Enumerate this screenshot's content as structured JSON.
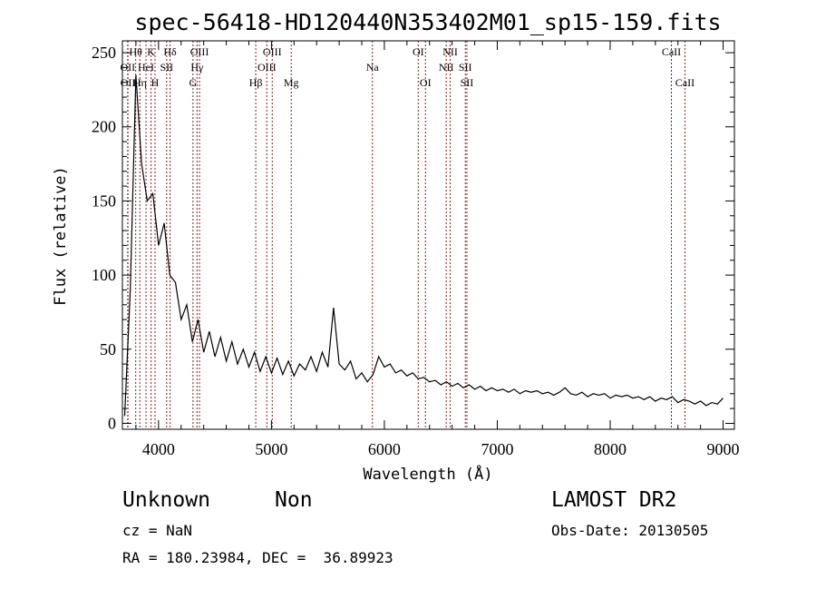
{
  "chart_data": {
    "type": "line",
    "title": "spec-56418-HD120440N353402M01_sp15-159.fits",
    "xlabel": "Wavelength (Å)",
    "ylabel": "Flux (relative)",
    "xlim": [
      3680,
      9100
    ],
    "ylim": [
      -4,
      258
    ],
    "xticks": [
      4000,
      5000,
      6000,
      7000,
      8000,
      9000
    ],
    "yticks": [
      0,
      50,
      100,
      150,
      200,
      250
    ],
    "grid": false,
    "series": [
      {
        "name": "spectrum",
        "x_start": 3700,
        "x_step": 50,
        "values": [
          5,
          90,
          235,
          175,
          150,
          155,
          120,
          135,
          100,
          95,
          70,
          80,
          55,
          70,
          48,
          62,
          45,
          58,
          42,
          55,
          40,
          50,
          38,
          48,
          35,
          45,
          34,
          44,
          33,
          42,
          32,
          40,
          36,
          45,
          35,
          48,
          38,
          78,
          40,
          36,
          42,
          30,
          34,
          28,
          33,
          45,
          38,
          40,
          34,
          36,
          32,
          34,
          30,
          31,
          28,
          29,
          26,
          28,
          25,
          27,
          24,
          26,
          23,
          25,
          22,
          24,
          22,
          23,
          21,
          23,
          20,
          22,
          21,
          22,
          20,
          21,
          19,
          21,
          24,
          20,
          19,
          21,
          18,
          20,
          19,
          20,
          17,
          19,
          18,
          19,
          17,
          18,
          16,
          18,
          15,
          17,
          16,
          18,
          14,
          16,
          15,
          13,
          15,
          12,
          14,
          13,
          17
        ]
      }
    ],
    "lines": [
      {
        "label": "OII",
        "wave": 3727,
        "row": 2
      },
      {
        "label": "OII",
        "wave": 3729,
        "row": 3
      },
      {
        "label": "Hθ",
        "wave": 3798,
        "row": 1
      },
      {
        "label": "Hη",
        "wave": 3835,
        "row": 3
      },
      {
        "label": "HeI",
        "wave": 3889,
        "row": 2
      },
      {
        "label": "K",
        "wave": 3934,
        "row": 1
      },
      {
        "label": "H",
        "wave": 3969,
        "row": 3
      },
      {
        "label": "SII",
        "wave": 4072,
        "row": 2
      },
      {
        "label": "Hδ",
        "wave": 4102,
        "row": 1
      },
      {
        "label": "G",
        "wave": 4305,
        "row": 3
      },
      {
        "label": "Hγ",
        "wave": 4341,
        "row": 2
      },
      {
        "label": "OIII",
        "wave": 4363,
        "row": 1
      },
      {
        "label": "Hβ",
        "wave": 4861,
        "row": 3
      },
      {
        "label": "OIII",
        "wave": 4959,
        "row": 2
      },
      {
        "label": "OIII",
        "wave": 5007,
        "row": 1
      },
      {
        "label": "Mg",
        "wave": 5175,
        "row": 3
      },
      {
        "label": "Na",
        "wave": 5894,
        "row": 2
      },
      {
        "label": "OI",
        "wave": 6300,
        "row": 1
      },
      {
        "label": "OI",
        "wave": 6364,
        "row": 3
      },
      {
        "label": "NII",
        "wave": 6548,
        "row": 2
      },
      {
        "label": "NII",
        "wave": 6583,
        "row": 1
      },
      {
        "label": "SII",
        "wave": 6717,
        "row": 2
      },
      {
        "label": "SII",
        "wave": 6731,
        "row": 3
      },
      {
        "label": "CaII",
        "wave": 8542,
        "row": 1
      },
      {
        "label": "CaII",
        "wave": 8662,
        "row": 3
      }
    ],
    "line_color": "#8b1a1a"
  },
  "info": {
    "class": "Unknown",
    "subclass": "Non",
    "survey": "LAMOST DR2",
    "cz": "cz = NaN",
    "obs_date": "Obs-Date: 20130505",
    "coords": "RA = 180.23984, DEC =  36.89923"
  }
}
